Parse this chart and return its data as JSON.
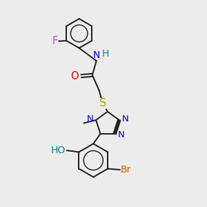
{
  "bg_color": "#ececec",
  "bond_color": "#1a1a1a",
  "bond_lw": 1.4,
  "figsize": [
    3.0,
    3.0
  ],
  "dpi": 100,
  "colors": {
    "F": "#cc44cc",
    "N": "#0000ee",
    "H": "#008888",
    "O": "#dd0000",
    "S": "#aaaa00",
    "Br": "#cc6600",
    "HO": "#008888",
    "methyl": "#1a1a1a"
  }
}
